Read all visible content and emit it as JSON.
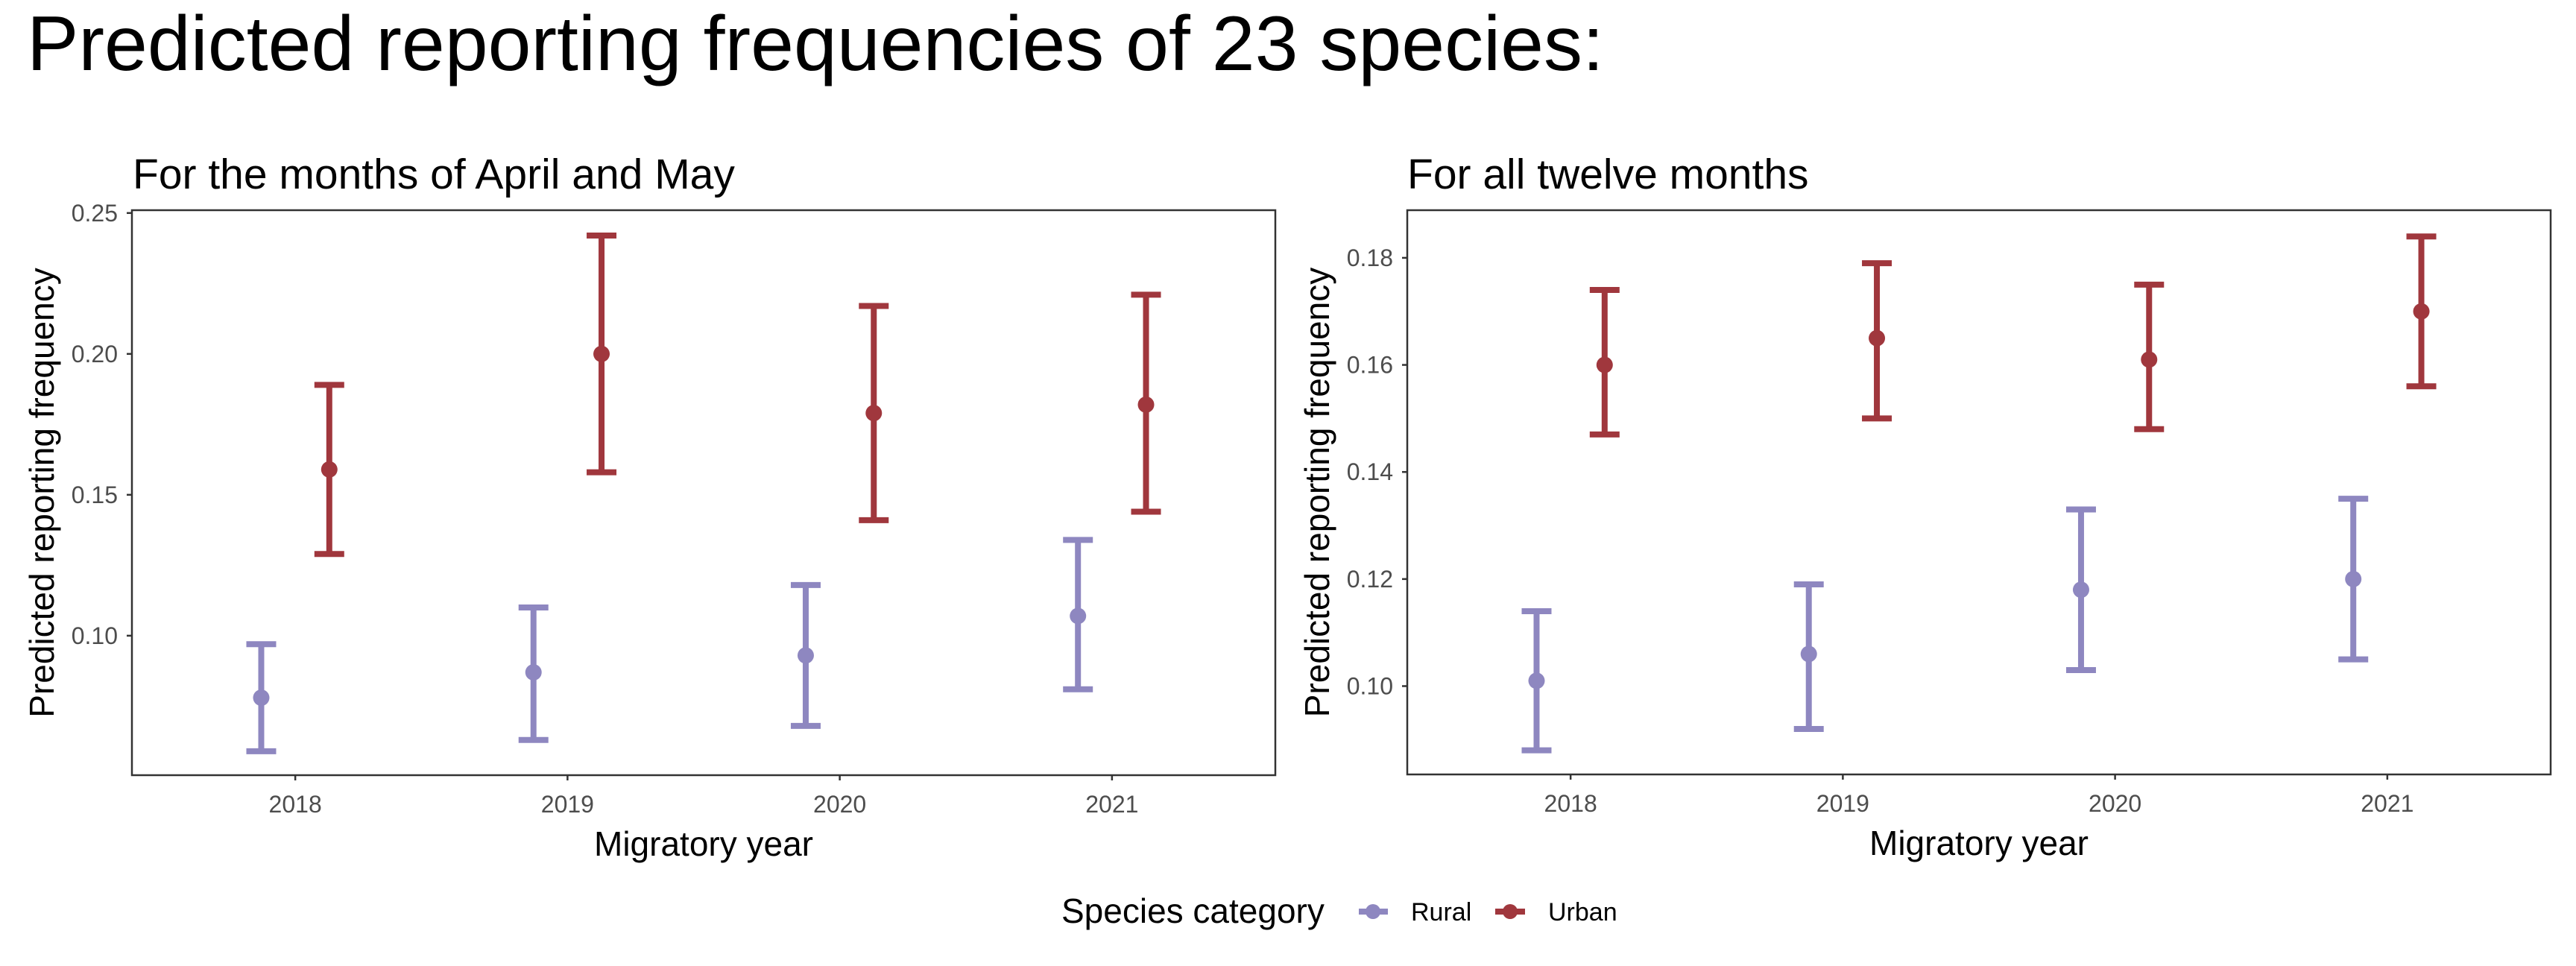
{
  "title": "Predicted reporting frequencies of 23 species:",
  "legend": {
    "title": "Species category",
    "position": "bottom",
    "items": [
      {
        "label": "Rural",
        "color": "#8E87C0"
      },
      {
        "label": "Urban",
        "color": "#A0373D"
      }
    ]
  },
  "chart_data": [
    {
      "type": "scatter",
      "subtype": "point-errorbar",
      "title": "For the months of April and May",
      "xlabel": "Migratory year",
      "ylabel": "Predicted reporting frequency",
      "categories": [
        "2018",
        "2019",
        "2020",
        "2021"
      ],
      "ylim": [
        0.0505,
        0.251
      ],
      "yticks": [
        0.1,
        0.15,
        0.2,
        0.25
      ],
      "ytick_labels": [
        "0.10",
        "0.15",
        "0.20",
        "0.25"
      ],
      "grid": false,
      "series": [
        {
          "name": "Rural",
          "color": "#8E87C0",
          "values": [
            0.078,
            0.087,
            0.093,
            0.107
          ],
          "lower": [
            0.059,
            0.063,
            0.068,
            0.081
          ],
          "upper": [
            0.097,
            0.11,
            0.118,
            0.134
          ]
        },
        {
          "name": "Urban",
          "color": "#A0373D",
          "values": [
            0.159,
            0.2,
            0.179,
            0.182
          ],
          "lower": [
            0.129,
            0.158,
            0.141,
            0.144
          ],
          "upper": [
            0.189,
            0.242,
            0.217,
            0.221
          ]
        }
      ]
    },
    {
      "type": "scatter",
      "subtype": "point-errorbar",
      "title": "For all twelve months",
      "xlabel": "Migratory year",
      "ylabel": "Predicted reporting frequency",
      "categories": [
        "2018",
        "2019",
        "2020",
        "2021"
      ],
      "ylim": [
        0.0835,
        0.1889
      ],
      "yticks": [
        0.1,
        0.12,
        0.14,
        0.16,
        0.18
      ],
      "ytick_labels": [
        "0.10",
        "0.12",
        "0.14",
        "0.16",
        "0.18"
      ],
      "grid": false,
      "series": [
        {
          "name": "Rural",
          "color": "#8E87C0",
          "values": [
            0.101,
            0.106,
            0.118,
            0.12
          ],
          "lower": [
            0.088,
            0.092,
            0.103,
            0.105
          ],
          "upper": [
            0.114,
            0.119,
            0.133,
            0.135
          ]
        },
        {
          "name": "Urban",
          "color": "#A0373D",
          "values": [
            0.16,
            0.165,
            0.161,
            0.17
          ],
          "lower": [
            0.147,
            0.15,
            0.148,
            0.156
          ],
          "upper": [
            0.174,
            0.179,
            0.175,
            0.184
          ]
        }
      ]
    }
  ]
}
